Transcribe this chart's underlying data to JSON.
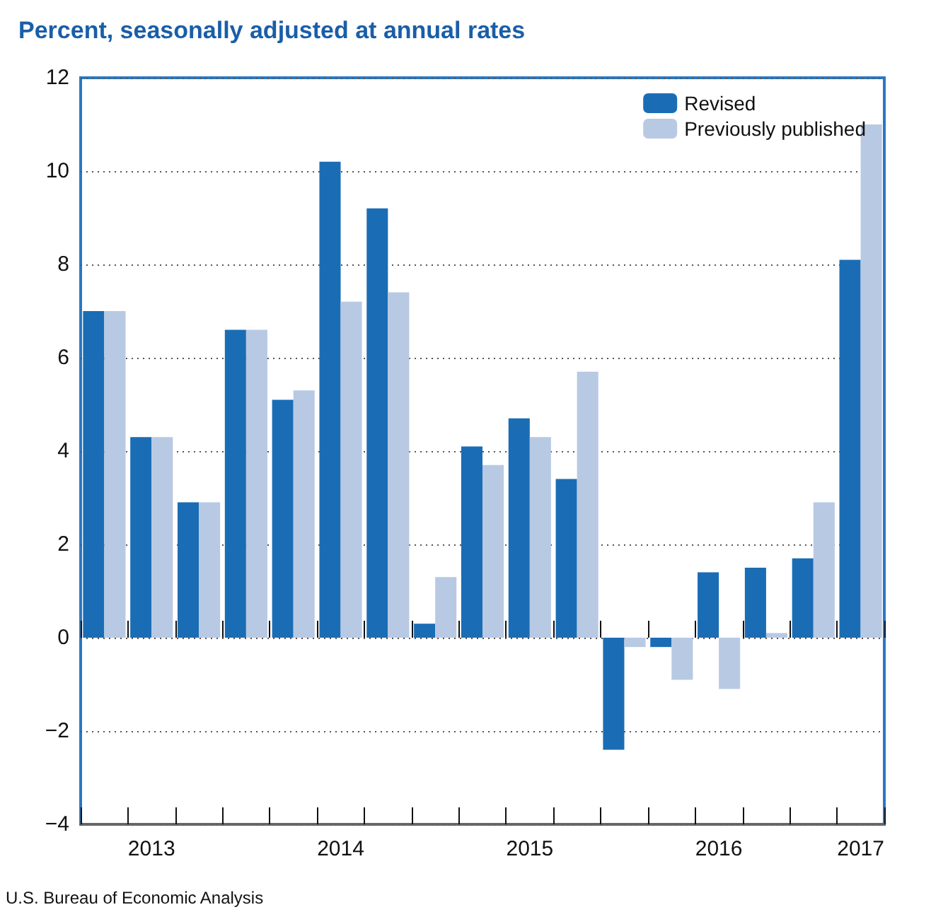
{
  "chart_data": {
    "type": "bar",
    "title": "Percent, seasonally adjusted at annual rates",
    "categories": [
      null,
      "2013",
      null,
      null,
      null,
      "2014",
      null,
      null,
      null,
      "2015",
      null,
      null,
      null,
      "2016",
      null,
      null,
      "2017"
    ],
    "series": [
      {
        "name": "Revised",
        "color": "#1a6db5",
        "values": [
          7.0,
          4.3,
          2.9,
          6.6,
          5.1,
          10.2,
          9.2,
          0.3,
          4.1,
          4.7,
          3.4,
          -2.4,
          -0.2,
          1.4,
          1.5,
          1.7,
          8.1
        ]
      },
      {
        "name": "Previously published",
        "color": "#b8c9e3",
        "values": [
          7.0,
          4.3,
          2.9,
          6.6,
          5.3,
          7.2,
          7.4,
          1.3,
          3.7,
          4.3,
          5.7,
          -0.2,
          -0.9,
          -1.1,
          0.1,
          2.9,
          11.0
        ]
      }
    ],
    "ylim": [
      -4,
      12
    ],
    "yticks": [
      -4,
      -2,
      0,
      2,
      4,
      6,
      8,
      10,
      12
    ],
    "grid": "y",
    "legend": "top right",
    "annotations": [
      "U.S. Bureau of Economic Analysis"
    ]
  }
}
